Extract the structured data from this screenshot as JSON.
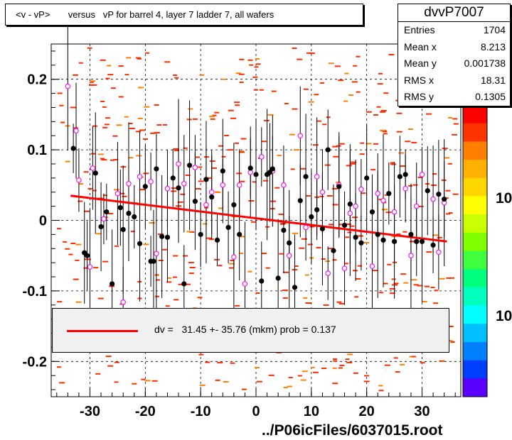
{
  "title": "<v - vP>       versus   vP for barrel 4, layer 7 ladder 7, all wafers",
  "stats": {
    "name": "dvvP7007",
    "rows": [
      {
        "label": "Entries",
        "value": "1704"
      },
      {
        "label": "Mean x",
        "value": "8.213"
      },
      {
        "label": "Mean y",
        "value": "0.001738"
      },
      {
        "label": "RMS x",
        "value": "18.31"
      },
      {
        "label": "RMS y",
        "value": "0.1305"
      }
    ]
  },
  "legend": {
    "text": "dv =   31.45 +- 35.76 (mkm) prob = 0.137",
    "line_color": "#ff0000"
  },
  "footer": "../P06icFiles/6037015.root",
  "palette_labels": [
    "10",
    "10"
  ],
  "chart_data": {
    "type": "scatter",
    "xlim": [
      -37,
      37
    ],
    "ylim": [
      -0.25,
      0.25
    ],
    "x_ticks": [
      -30,
      -20,
      -10,
      0,
      10,
      20,
      30
    ],
    "y_ticks": [
      -0.2,
      -0.1,
      0,
      0.1,
      0.2
    ],
    "x_tick_labels": [
      "-30",
      "-20",
      "-10",
      "0",
      "10",
      "20",
      "30"
    ],
    "y_tick_labels": [
      "-0.2",
      "-0.1",
      "0",
      "0.1",
      "0.2"
    ],
    "grid": true,
    "fit_line": {
      "x": [
        -33.5,
        34.5
      ],
      "y": [
        0.035,
        -0.03
      ],
      "color": "#ff0000"
    },
    "black_points": [
      {
        "x": -33,
        "y": 0.102
      },
      {
        "x": -31,
        "y": -0.046
      },
      {
        "x": -30.5,
        "y": -0.05
      },
      {
        "x": -29,
        "y": 0.067
      },
      {
        "x": -28,
        "y": -0.009
      },
      {
        "x": -27,
        "y": 0.012
      },
      {
        "x": -26,
        "y": -0.09
      },
      {
        "x": -24.5,
        "y": 0.018
      },
      {
        "x": -24,
        "y": -0.013
      },
      {
        "x": -23,
        "y": 0.01
      },
      {
        "x": -22,
        "y": 0.005
      },
      {
        "x": -21,
        "y": -0.033
      },
      {
        "x": -20,
        "y": 0.048
      },
      {
        "x": -19,
        "y": -0.058
      },
      {
        "x": -18.5,
        "y": -0.058
      },
      {
        "x": -18,
        "y": 0.073
      },
      {
        "x": -17,
        "y": -0.023
      },
      {
        "x": -16,
        "y": -0.024
      },
      {
        "x": -15,
        "y": 0.06
      },
      {
        "x": -14,
        "y": 0.046
      },
      {
        "x": -13,
        "y": -0.09
      },
      {
        "x": -12,
        "y": 0.078
      },
      {
        "x": -11,
        "y": 0.027
      },
      {
        "x": -10,
        "y": -0.02
      },
      {
        "x": -9,
        "y": 0.058
      },
      {
        "x": -8,
        "y": 0.033
      },
      {
        "x": -7,
        "y": -0.028
      },
      {
        "x": -6,
        "y": 0.07
      },
      {
        "x": -5,
        "y": -0.01
      },
      {
        "x": -4,
        "y": 0.022
      },
      {
        "x": -3,
        "y": -0.02
      },
      {
        "x": -1,
        "y": 0.074
      },
      {
        "x": 0,
        "y": 0.065
      },
      {
        "x": 1,
        "y": -0.086
      },
      {
        "x": 2,
        "y": 0.065
      },
      {
        "x": 2.5,
        "y": 0.068
      },
      {
        "x": 3,
        "y": 0.073
      },
      {
        "x": 4,
        "y": -0.082
      },
      {
        "x": 5,
        "y": -0.014
      },
      {
        "x": 6,
        "y": -0.032
      },
      {
        "x": 7,
        "y": -0.095
      },
      {
        "x": 8,
        "y": 0.028
      },
      {
        "x": 9,
        "y": 0.062
      },
      {
        "x": 10,
        "y": 0.005
      },
      {
        "x": 11,
        "y": 0.015
      },
      {
        "x": 12,
        "y": -0.012
      },
      {
        "x": 13,
        "y": 0.1
      },
      {
        "x": 14,
        "y": -0.043
      },
      {
        "x": 15,
        "y": 0.048
      },
      {
        "x": 16,
        "y": -0.007
      },
      {
        "x": 17,
        "y": 0.023
      },
      {
        "x": 18,
        "y": -0.024
      },
      {
        "x": 19,
        "y": -0.032
      },
      {
        "x": 20,
        "y": 0.06
      },
      {
        "x": 21,
        "y": 0.012
      },
      {
        "x": 22,
        "y": -0.02
      },
      {
        "x": 23,
        "y": -0.028
      },
      {
        "x": 24,
        "y": 0.038
      },
      {
        "x": 25,
        "y": -0.03
      },
      {
        "x": 26,
        "y": 0.062
      },
      {
        "x": 27,
        "y": 0.065
      },
      {
        "x": 28,
        "y": -0.02
      },
      {
        "x": 29,
        "y": -0.03
      },
      {
        "x": 30,
        "y": -0.03
      },
      {
        "x": 31,
        "y": 0.042
      },
      {
        "x": 32,
        "y": -0.035
      },
      {
        "x": 33,
        "y": 0.037
      },
      {
        "x": 34,
        "y": 0.03
      }
    ],
    "magenta_points": [
      {
        "x": -34,
        "y": 0.19
      },
      {
        "x": -32.5,
        "y": 0.127
      },
      {
        "x": -32,
        "y": 0.057
      },
      {
        "x": -30,
        "y": -0.066
      },
      {
        "x": -29.5,
        "y": 0.074
      },
      {
        "x": -27.5,
        "y": 0.002
      },
      {
        "x": -25,
        "y": 0.038
      },
      {
        "x": -24,
        "y": -0.116
      },
      {
        "x": -23,
        "y": 0.052
      },
      {
        "x": -21,
        "y": 0.062
      },
      {
        "x": -19,
        "y": 0.055
      },
      {
        "x": -18,
        "y": -0.047
      },
      {
        "x": -16,
        "y": 0.045
      },
      {
        "x": -14,
        "y": 0.08
      },
      {
        "x": -13,
        "y": 0.052
      },
      {
        "x": -11,
        "y": 0.075
      },
      {
        "x": -9,
        "y": 0.022
      },
      {
        "x": -8,
        "y": 0.04
      },
      {
        "x": -6,
        "y": 0.05
      },
      {
        "x": -4,
        "y": -0.052
      },
      {
        "x": -3,
        "y": 0.05
      },
      {
        "x": -2,
        "y": -0.09
      },
      {
        "x": -1,
        "y": 0.068
      },
      {
        "x": 1,
        "y": 0.09
      },
      {
        "x": 3,
        "y": 0.07
      },
      {
        "x": 5,
        "y": 0.05
      },
      {
        "x": 6,
        "y": -0.05
      },
      {
        "x": 8,
        "y": 0.12
      },
      {
        "x": 9,
        "y": -0.01
      },
      {
        "x": 11,
        "y": 0.062
      },
      {
        "x": 12,
        "y": 0.04
      },
      {
        "x": 13,
        "y": -0.075
      },
      {
        "x": 15,
        "y": 0.05
      },
      {
        "x": 16,
        "y": -0.068
      },
      {
        "x": 17,
        "y": 0.01
      },
      {
        "x": 18,
        "y": 0.02
      },
      {
        "x": 19,
        "y": 0.044
      },
      {
        "x": 21,
        "y": -0.065
      },
      {
        "x": 22,
        "y": 0.038
      },
      {
        "x": 23,
        "y": 0.028
      },
      {
        "x": 25,
        "y": 0.012
      },
      {
        "x": 27,
        "y": 0.045
      },
      {
        "x": 28,
        "y": -0.05
      },
      {
        "x": 29,
        "y": 0.02
      },
      {
        "x": 30,
        "y": 0.065
      },
      {
        "x": 32,
        "y": 0.03
      },
      {
        "x": 33,
        "y": -0.045
      },
      {
        "x": 34,
        "y": 0.025
      }
    ],
    "palette": [
      "#fe0000",
      "#fe3400",
      "#ff7f00",
      "#ffb000",
      "#ffd700",
      "#ffff00",
      "#c7ff00",
      "#7fff00",
      "#3fff3f",
      "#00ff7f",
      "#00ffbf",
      "#00ffff",
      "#00bfff",
      "#007fff",
      "#003fff",
      "#5a00ff"
    ]
  }
}
